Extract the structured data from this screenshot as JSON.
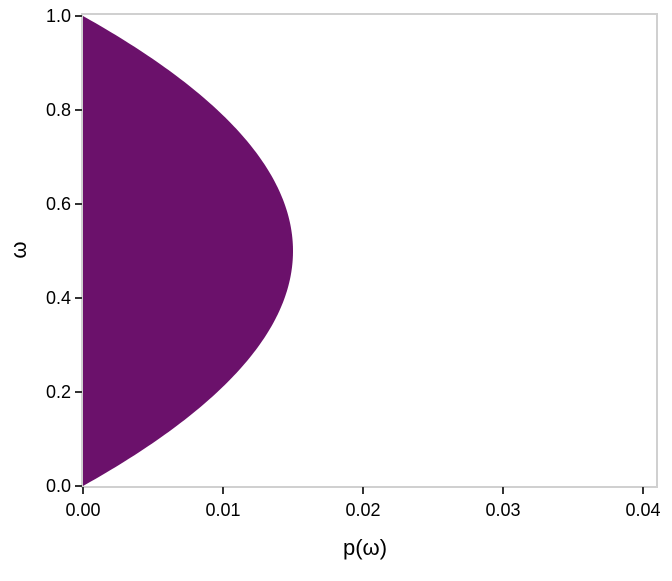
{
  "chart_data": {
    "type": "area",
    "orientation": "horizontal",
    "xlabel": "p(ω)",
    "ylabel": "ω",
    "xlim": [
      0,
      0.0412
    ],
    "ylim": [
      0,
      1
    ],
    "xticks": [
      "0.00",
      "0.01",
      "0.02",
      "0.03",
      "0.04"
    ],
    "yticks": [
      "0.0",
      "0.2",
      "0.4",
      "0.6",
      "0.8",
      "1.0"
    ],
    "grid": false,
    "fill_color": "#6B116B",
    "series": [
      {
        "omega": [
          0,
          0.05,
          0.1,
          0.15,
          0.2,
          0.25,
          0.3,
          0.35,
          0.4,
          0.45,
          0.5,
          0.55,
          0.6,
          0.65,
          0.7,
          0.75,
          0.8,
          0.85,
          0.9,
          0.95,
          1
        ],
        "p": [
          0,
          0.00285,
          0.0054,
          0.00765,
          0.0096,
          0.01125,
          0.0126,
          0.01365,
          0.0144,
          0.01485,
          0.015,
          0.01485,
          0.0144,
          0.01365,
          0.0126,
          0.01125,
          0.0096,
          0.00765,
          0.0054,
          0.00285,
          0
        ]
      }
    ]
  }
}
